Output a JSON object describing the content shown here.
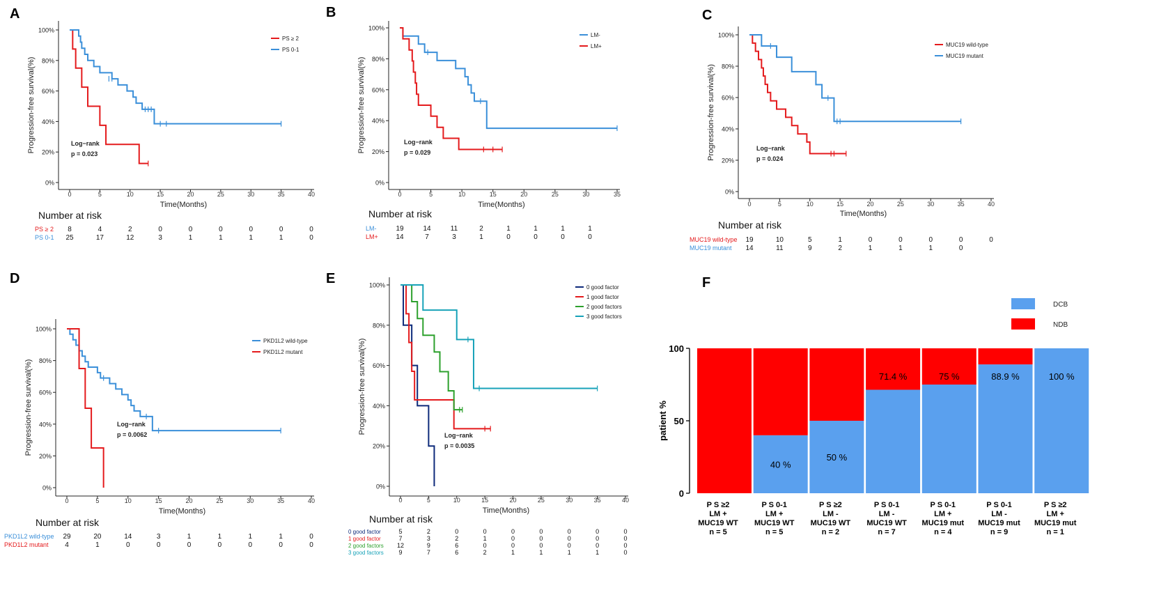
{
  "chart_data": [
    {
      "panel": "A",
      "type": "line",
      "subtype": "kaplan-meier",
      "ylabel": "Progression-free survival(%)",
      "xlabel": "Time(Months)",
      "xlim": [
        0,
        40
      ],
      "ylim": [
        0,
        100
      ],
      "xticks": [
        "0",
        "5",
        "10",
        "15",
        "20",
        "25",
        "30",
        "35",
        "40"
      ],
      "yticks": [
        "0%",
        "20%",
        "40%",
        "60%",
        "80%",
        "100%"
      ],
      "legend_position": "top-right",
      "annotation": [
        "Log−rank",
        "p = 0.023"
      ],
      "risk_title": "Number at risk",
      "series": [
        {
          "name": "PS ≥ 2",
          "color": "#e41a1c",
          "steps": [
            [
              0,
              100
            ],
            [
              0.5,
              87.5
            ],
            [
              1,
              75
            ],
            [
              2,
              62.5
            ],
            [
              3,
              50
            ],
            [
              5,
              37.5
            ],
            [
              6,
              25
            ],
            [
              11.5,
              12.5
            ],
            [
              13,
              12.5
            ]
          ],
          "censors": [
            [
              13,
              12.5
            ]
          ],
          "risk": [
            "8",
            "4",
            "2",
            "0",
            "0",
            "0",
            "0",
            "0",
            "0"
          ]
        },
        {
          "name": "PS 0-1",
          "color": "#3a8fd9",
          "steps": [
            [
              0,
              100
            ],
            [
              1.5,
              96
            ],
            [
              1.8,
              92
            ],
            [
              2,
              88
            ],
            [
              2.5,
              84
            ],
            [
              3,
              80
            ],
            [
              4,
              76
            ],
            [
              5,
              72
            ],
            [
              7,
              68
            ],
            [
              8,
              64
            ],
            [
              9.5,
              60
            ],
            [
              10.5,
              56
            ],
            [
              11,
              52
            ],
            [
              12,
              48
            ],
            [
              14,
              38.5
            ],
            [
              35,
              38.5
            ]
          ],
          "censors": [
            [
              6.5,
              68
            ],
            [
              7,
              68
            ],
            [
              12.5,
              48
            ],
            [
              13,
              48
            ],
            [
              13.5,
              48
            ],
            [
              15,
              38.5
            ],
            [
              16,
              38.5
            ],
            [
              35,
              38.5
            ]
          ],
          "risk": [
            "25",
            "17",
            "12",
            "3",
            "1",
            "1",
            "1",
            "1",
            "0"
          ]
        }
      ]
    },
    {
      "panel": "B",
      "type": "line",
      "subtype": "kaplan-meier",
      "ylabel": "Progression-free survival(%)",
      "xlabel": "Time(Months)",
      "xlim": [
        0,
        35
      ],
      "ylim": [
        0,
        100
      ],
      "xticks": [
        "0",
        "5",
        "10",
        "15",
        "20",
        "25",
        "30",
        "35"
      ],
      "yticks": [
        "0%",
        "20%",
        "40%",
        "60%",
        "80%",
        "100%"
      ],
      "legend_position": "top-right",
      "annotation": [
        "Log−rank",
        "p = 0.029"
      ],
      "risk_title": "Number at risk",
      "series": [
        {
          "name": "LM-",
          "color": "#3a8fd9",
          "steps": [
            [
              0,
              100
            ],
            [
              0.5,
              94.7
            ],
            [
              3,
              89.5
            ],
            [
              4,
              84.2
            ],
            [
              6,
              78.9
            ],
            [
              9,
              73.7
            ],
            [
              10.5,
              68.4
            ],
            [
              11,
              63.2
            ],
            [
              11.5,
              57.9
            ],
            [
              12,
              52.6
            ],
            [
              14,
              35.1
            ],
            [
              35,
              35.1
            ]
          ],
          "censors": [
            [
              4.5,
              84.2
            ],
            [
              13,
              52.6
            ],
            [
              35,
              35.1
            ]
          ],
          "risk": [
            "19",
            "14",
            "11",
            "2",
            "1",
            "1",
            "1",
            "1"
          ]
        },
        {
          "name": "LM+",
          "color": "#e41a1c",
          "steps": [
            [
              0,
              100
            ],
            [
              0.5,
              92.9
            ],
            [
              1.5,
              85.7
            ],
            [
              2,
              78.6
            ],
            [
              2.2,
              71.4
            ],
            [
              2.5,
              64.3
            ],
            [
              2.7,
              57.1
            ],
            [
              3,
              50
            ],
            [
              5,
              42.9
            ],
            [
              6,
              35.7
            ],
            [
              7,
              28.6
            ],
            [
              9.5,
              21.4
            ],
            [
              16.5,
              21.4
            ]
          ],
          "censors": [
            [
              13.5,
              21.4
            ],
            [
              15,
              21.4
            ],
            [
              16.5,
              21.4
            ]
          ],
          "risk": [
            "14",
            "7",
            "3",
            "1",
            "0",
            "0",
            "0",
            "0"
          ]
        }
      ]
    },
    {
      "panel": "C",
      "type": "line",
      "subtype": "kaplan-meier",
      "ylabel": "Progression-free survival(%)",
      "xlabel": "Time(Months)",
      "xlim": [
        0,
        40
      ],
      "ylim": [
        0,
        100
      ],
      "xticks": [
        "0",
        "5",
        "10",
        "15",
        "20",
        "25",
        "30",
        "35",
        "40"
      ],
      "yticks": [
        "0%",
        "20%",
        "40%",
        "60%",
        "80%",
        "100%"
      ],
      "legend_position": "top-right",
      "annotation": [
        "Log−rank",
        "p = 0.024"
      ],
      "risk_title": "Number at risk",
      "series": [
        {
          "name": "MUC19 wild-type",
          "color": "#e41a1c",
          "steps": [
            [
              0,
              100
            ],
            [
              0.5,
              94.7
            ],
            [
              1,
              89.5
            ],
            [
              1.5,
              84.2
            ],
            [
              2,
              78.9
            ],
            [
              2.3,
              73.7
            ],
            [
              2.6,
              68.4
            ],
            [
              3,
              63.2
            ],
            [
              3.5,
              57.9
            ],
            [
              4.5,
              52.6
            ],
            [
              6,
              47.4
            ],
            [
              7,
              42.1
            ],
            [
              8,
              36.8
            ],
            [
              9.5,
              31.6
            ],
            [
              10,
              24.2
            ],
            [
              16,
              24.2
            ]
          ],
          "censors": [
            [
              13.5,
              24.2
            ],
            [
              14,
              24.2
            ],
            [
              16,
              24.2
            ]
          ],
          "risk": [
            "19",
            "10",
            "5",
            "1",
            "0",
            "0",
            "0",
            "0",
            "0"
          ]
        },
        {
          "name": "MUC19 mutant",
          "color": "#3a8fd9",
          "steps": [
            [
              0,
              100
            ],
            [
              2,
              92.9
            ],
            [
              4.5,
              85.7
            ],
            [
              7,
              76.5
            ],
            [
              11,
              68.2
            ],
            [
              12,
              59.7
            ],
            [
              14,
              44.8
            ],
            [
              35,
              44.8
            ]
          ],
          "censors": [
            [
              3.5,
              92.9
            ],
            [
              13,
              59.7
            ],
            [
              14.5,
              44.8
            ],
            [
              15,
              44.8
            ],
            [
              35,
              44.8
            ]
          ],
          "risk": [
            "14",
            "11",
            "9",
            "2",
            "1",
            "1",
            "1",
            "0"
          ]
        }
      ]
    },
    {
      "panel": "D",
      "type": "line",
      "subtype": "kaplan-meier",
      "ylabel": "Progression-free survival(%)",
      "xlabel": "Time(Months)",
      "xlim": [
        0,
        40
      ],
      "ylim": [
        0,
        100
      ],
      "xticks": [
        "0",
        "5",
        "10",
        "15",
        "20",
        "25",
        "30",
        "35",
        "40"
      ],
      "yticks": [
        "0%",
        "20%",
        "40%",
        "60%",
        "80%",
        "100%"
      ],
      "legend_position": "top-right",
      "annotation": [
        "Log−rank",
        "p = 0.0062"
      ],
      "risk_title": "Number at risk",
      "series": [
        {
          "name": "PKD1L2 wild-type",
          "color": "#3a8fd9",
          "steps": [
            [
              0,
              100
            ],
            [
              0.5,
              96.6
            ],
            [
              1,
              93.1
            ],
            [
              1.5,
              89.7
            ],
            [
              2,
              86.2
            ],
            [
              2.5,
              82.8
            ],
            [
              3,
              79.3
            ],
            [
              3.5,
              75.9
            ],
            [
              5,
              72.4
            ],
            [
              5.5,
              69
            ],
            [
              7,
              65.5
            ],
            [
              8,
              62.1
            ],
            [
              9,
              58.6
            ],
            [
              10,
              55.2
            ],
            [
              10.5,
              51.7
            ],
            [
              11,
              48.3
            ],
            [
              12,
              44.8
            ],
            [
              14,
              35.9
            ],
            [
              35,
              35.9
            ]
          ],
          "censors": [
            [
              6,
              69
            ],
            [
              13,
              44.8
            ],
            [
              15,
              35.9
            ],
            [
              35,
              35.9
            ]
          ],
          "risk": [
            "29",
            "20",
            "14",
            "3",
            "1",
            "1",
            "1",
            "1",
            "0"
          ]
        },
        {
          "name": "PKD1L2 mutant",
          "color": "#e41a1c",
          "steps": [
            [
              0,
              100
            ],
            [
              2,
              75
            ],
            [
              3,
              50
            ],
            [
              4,
              25
            ],
            [
              6,
              0
            ]
          ],
          "censors": [],
          "risk": [
            "4",
            "1",
            "0",
            "0",
            "0",
            "0",
            "0",
            "0",
            "0"
          ]
        }
      ]
    },
    {
      "panel": "E",
      "type": "line",
      "subtype": "kaplan-meier",
      "ylabel": "Progression-free survival(%)",
      "xlabel": "Time(Months)",
      "xlim": [
        0,
        40
      ],
      "ylim": [
        0,
        100
      ],
      "xticks": [
        "0",
        "5",
        "10",
        "15",
        "20",
        "25",
        "30",
        "35",
        "40"
      ],
      "yticks": [
        "0%",
        "20%",
        "40%",
        "60%",
        "80%",
        "100%"
      ],
      "legend_position": "top-right",
      "annotation": [
        "Log−rank",
        "p = 0.0035"
      ],
      "risk_title": "Number at risk",
      "series": [
        {
          "name": "0 good factor",
          "color": "#0d2a7a",
          "steps": [
            [
              0,
              100
            ],
            [
              0.5,
              80
            ],
            [
              2,
              60
            ],
            [
              3,
              40
            ],
            [
              5,
              20
            ],
            [
              6,
              0
            ]
          ],
          "censors": [],
          "risk": [
            "5",
            "2",
            "0",
            "0",
            "0",
            "0",
            "0",
            "0",
            "0"
          ]
        },
        {
          "name": "1 good factor",
          "color": "#e41a1c",
          "steps": [
            [
              0,
              100
            ],
            [
              1,
              85.7
            ],
            [
              1.5,
              71.4
            ],
            [
              2,
              57.1
            ],
            [
              2.5,
              42.9
            ],
            [
              9.5,
              28.6
            ],
            [
              16,
              28.6
            ]
          ],
          "censors": [
            [
              15,
              28.6
            ],
            [
              16,
              28.6
            ]
          ],
          "risk": [
            "7",
            "3",
            "2",
            "1",
            "0",
            "0",
            "0",
            "0",
            "0"
          ]
        },
        {
          "name": "2 good factors",
          "color": "#2ca02c",
          "steps": [
            [
              0,
              100
            ],
            [
              2,
              91.7
            ],
            [
              3,
              83.3
            ],
            [
              4,
              75
            ],
            [
              6,
              66.7
            ],
            [
              7,
              56.9
            ],
            [
              8.5,
              47.4
            ],
            [
              9.5,
              38
            ],
            [
              11,
              38
            ]
          ],
          "censors": [
            [
              10.5,
              38
            ],
            [
              11,
              38
            ]
          ],
          "risk": [
            "12",
            "9",
            "6",
            "0",
            "0",
            "0",
            "0",
            "0",
            "0"
          ]
        },
        {
          "name": "3 good factors",
          "color": "#17a2b8",
          "steps": [
            [
              0,
              100
            ],
            [
              4,
              87.5
            ],
            [
              10,
              72.9
            ],
            [
              13,
              48.6
            ],
            [
              35,
              48.6
            ]
          ],
          "censors": [
            [
              12,
              72.9
            ],
            [
              14,
              48.6
            ],
            [
              35,
              48.6
            ]
          ],
          "risk": [
            "9",
            "7",
            "6",
            "2",
            "1",
            "1",
            "1",
            "1",
            "0"
          ]
        }
      ]
    },
    {
      "panel": "F",
      "type": "bar",
      "subtype": "stacked-percent",
      "ylabel": "patient %",
      "ylim": [
        0,
        100
      ],
      "yticks": [
        "0",
        "50",
        "100"
      ],
      "legend_position": "top-right",
      "categories": [
        [
          "P S  ≥2",
          "LM +",
          "MUC19 WT",
          "n = 5"
        ],
        [
          "P S  0-1",
          "LM +",
          "MUC19 WT",
          "n = 5"
        ],
        [
          "P S  ≥2",
          "LM -",
          "MUC19 WT",
          "n = 2"
        ],
        [
          "P S  0-1",
          "LM -",
          "MUC19 WT",
          "n = 7"
        ],
        [
          "P S  0-1",
          "LM +",
          "MUC19 mut",
          "n = 4"
        ],
        [
          "P S  0-1",
          "LM -",
          "MUC19 mut",
          "n = 9"
        ],
        [
          "P S  ≥2",
          "LM +",
          "MUC19 mut",
          "n = 1"
        ]
      ],
      "series": [
        {
          "name": "DCB",
          "color": "#5aa0ee",
          "values": [
            0,
            40,
            50,
            71.4,
            75,
            88.9,
            100
          ],
          "labels": [
            "",
            "40 %",
            "50 %",
            "71.4 %",
            "75 %",
            "88.9 %",
            "100 %"
          ]
        },
        {
          "name": "NDB",
          "color": "#ff0000",
          "values": [
            100,
            60,
            50,
            28.6,
            25,
            11.1,
            0
          ]
        }
      ]
    }
  ]
}
